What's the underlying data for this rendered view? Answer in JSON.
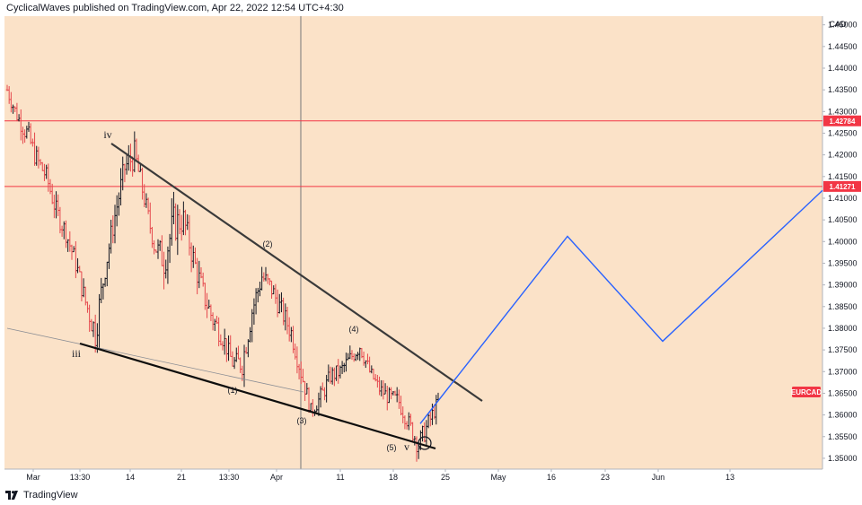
{
  "header": {
    "attribution": "CyclicalWaves published on TradingView.com, Apr 22, 2022 12:54 UTC+4:30"
  },
  "footer": {
    "brand": "TradingView"
  },
  "colors": {
    "plot_bg": "#fbe2c8",
    "up_bar": "#131722",
    "down_bar": "#e5484d",
    "level_line": "#f23645",
    "wedge_line": "#3a3a3a",
    "projection": "#2962ff",
    "symbol_badge": "#f23645"
  },
  "chart_data": {
    "type": "line",
    "symbol": "EURCAD",
    "currency": "CAD",
    "price_axis_ticks": [
      "1.45000",
      "1.44500",
      "1.44000",
      "1.43500",
      "1.43000",
      "1.42500",
      "1.42000",
      "1.41500",
      "1.41000",
      "1.40500",
      "1.40000",
      "1.39500",
      "1.39000",
      "1.38500",
      "1.38000",
      "1.37500",
      "1.37000",
      "1.36500",
      "1.36000",
      "1.35500",
      "1.35000"
    ],
    "ylim": [
      1.3475,
      1.452
    ],
    "time_axis_labels": [
      "Mar",
      "13:30",
      "14",
      "21",
      "13:30",
      "Apr",
      "11",
      "18",
      "25",
      "May",
      "16",
      "23",
      "Jun",
      "13"
    ],
    "horizontal_levels": [
      {
        "price": 1.42784,
        "label": "1.42784"
      },
      {
        "price": 1.41271,
        "label": "1.41271"
      }
    ],
    "price_path": [
      [
        1.435,
        1.4375,
        1.43
      ],
      [
        1.429,
        1.4305,
        1.424
      ],
      [
        1.425,
        1.428,
        1.418
      ],
      [
        1.419,
        1.421,
        1.412
      ],
      [
        1.415,
        1.417,
        1.409
      ],
      [
        1.407,
        1.409,
        1.4
      ],
      [
        1.402,
        1.404,
        1.396
      ],
      [
        1.395,
        1.397,
        1.388
      ],
      [
        1.386,
        1.388,
        1.379
      ],
      [
        1.379,
        1.39,
        1.376
      ],
      [
        1.394,
        1.401,
        1.39
      ],
      [
        1.406,
        1.412,
        1.402
      ],
      [
        1.417,
        1.424,
        1.413
      ],
      [
        1.42,
        1.423,
        1.411
      ],
      [
        1.41,
        1.412,
        1.403
      ],
      [
        1.399,
        1.401,
        1.394
      ],
      [
        1.396,
        1.408,
        1.392
      ],
      [
        1.404,
        1.415,
        1.399
      ],
      [
        1.405,
        1.408,
        1.396
      ],
      [
        1.396,
        1.399,
        1.388
      ],
      [
        1.388,
        1.392,
        1.381
      ],
      [
        1.382,
        1.386,
        1.376
      ],
      [
        1.378,
        1.381,
        1.372
      ],
      [
        1.372,
        1.375,
        1.368
      ],
      [
        1.372,
        1.381,
        1.37
      ],
      [
        1.384,
        1.392,
        1.381
      ],
      [
        1.392,
        1.398,
        1.388
      ],
      [
        1.389,
        1.391,
        1.382
      ],
      [
        1.384,
        1.387,
        1.378
      ],
      [
        1.379,
        1.381,
        1.372
      ],
      [
        1.37,
        1.372,
        1.363
      ],
      [
        1.361,
        1.365,
        1.359
      ],
      [
        1.364,
        1.37,
        1.362
      ],
      [
        1.369,
        1.372,
        1.365
      ],
      [
        1.37,
        1.374,
        1.367
      ],
      [
        1.373,
        1.377,
        1.37
      ],
      [
        1.376,
        1.377,
        1.369
      ],
      [
        1.37,
        1.372,
        1.366
      ],
      [
        1.366,
        1.368,
        1.362
      ],
      [
        1.364,
        1.367,
        1.36
      ],
      [
        1.363,
        1.366,
        1.358
      ],
      [
        1.358,
        1.361,
        1.354
      ],
      [
        1.353,
        1.361,
        1.3515
      ],
      [
        1.358,
        1.364,
        1.356
      ],
      [
        1.363,
        1.367,
        1.361
      ]
    ],
    "series": [
      {
        "values": [
          [
            1.358,
            1.36
          ],
          [
            1.4012,
            1.4
          ],
          [
            1.377,
            1.377
          ],
          [
            1.4118,
            1.41271
          ]
        ]
      }
    ],
    "annotations": [
      {
        "text": "iv",
        "kind": "roman"
      },
      {
        "text": "iii",
        "kind": "roman"
      },
      {
        "text": "(1)",
        "kind": "wave"
      },
      {
        "text": "(2)",
        "kind": "wave"
      },
      {
        "text": "(3)",
        "kind": "wave"
      },
      {
        "text": "(4)",
        "kind": "wave"
      },
      {
        "text": "(5)",
        "kind": "wave"
      },
      {
        "text": "v",
        "kind": "roman"
      }
    ]
  }
}
